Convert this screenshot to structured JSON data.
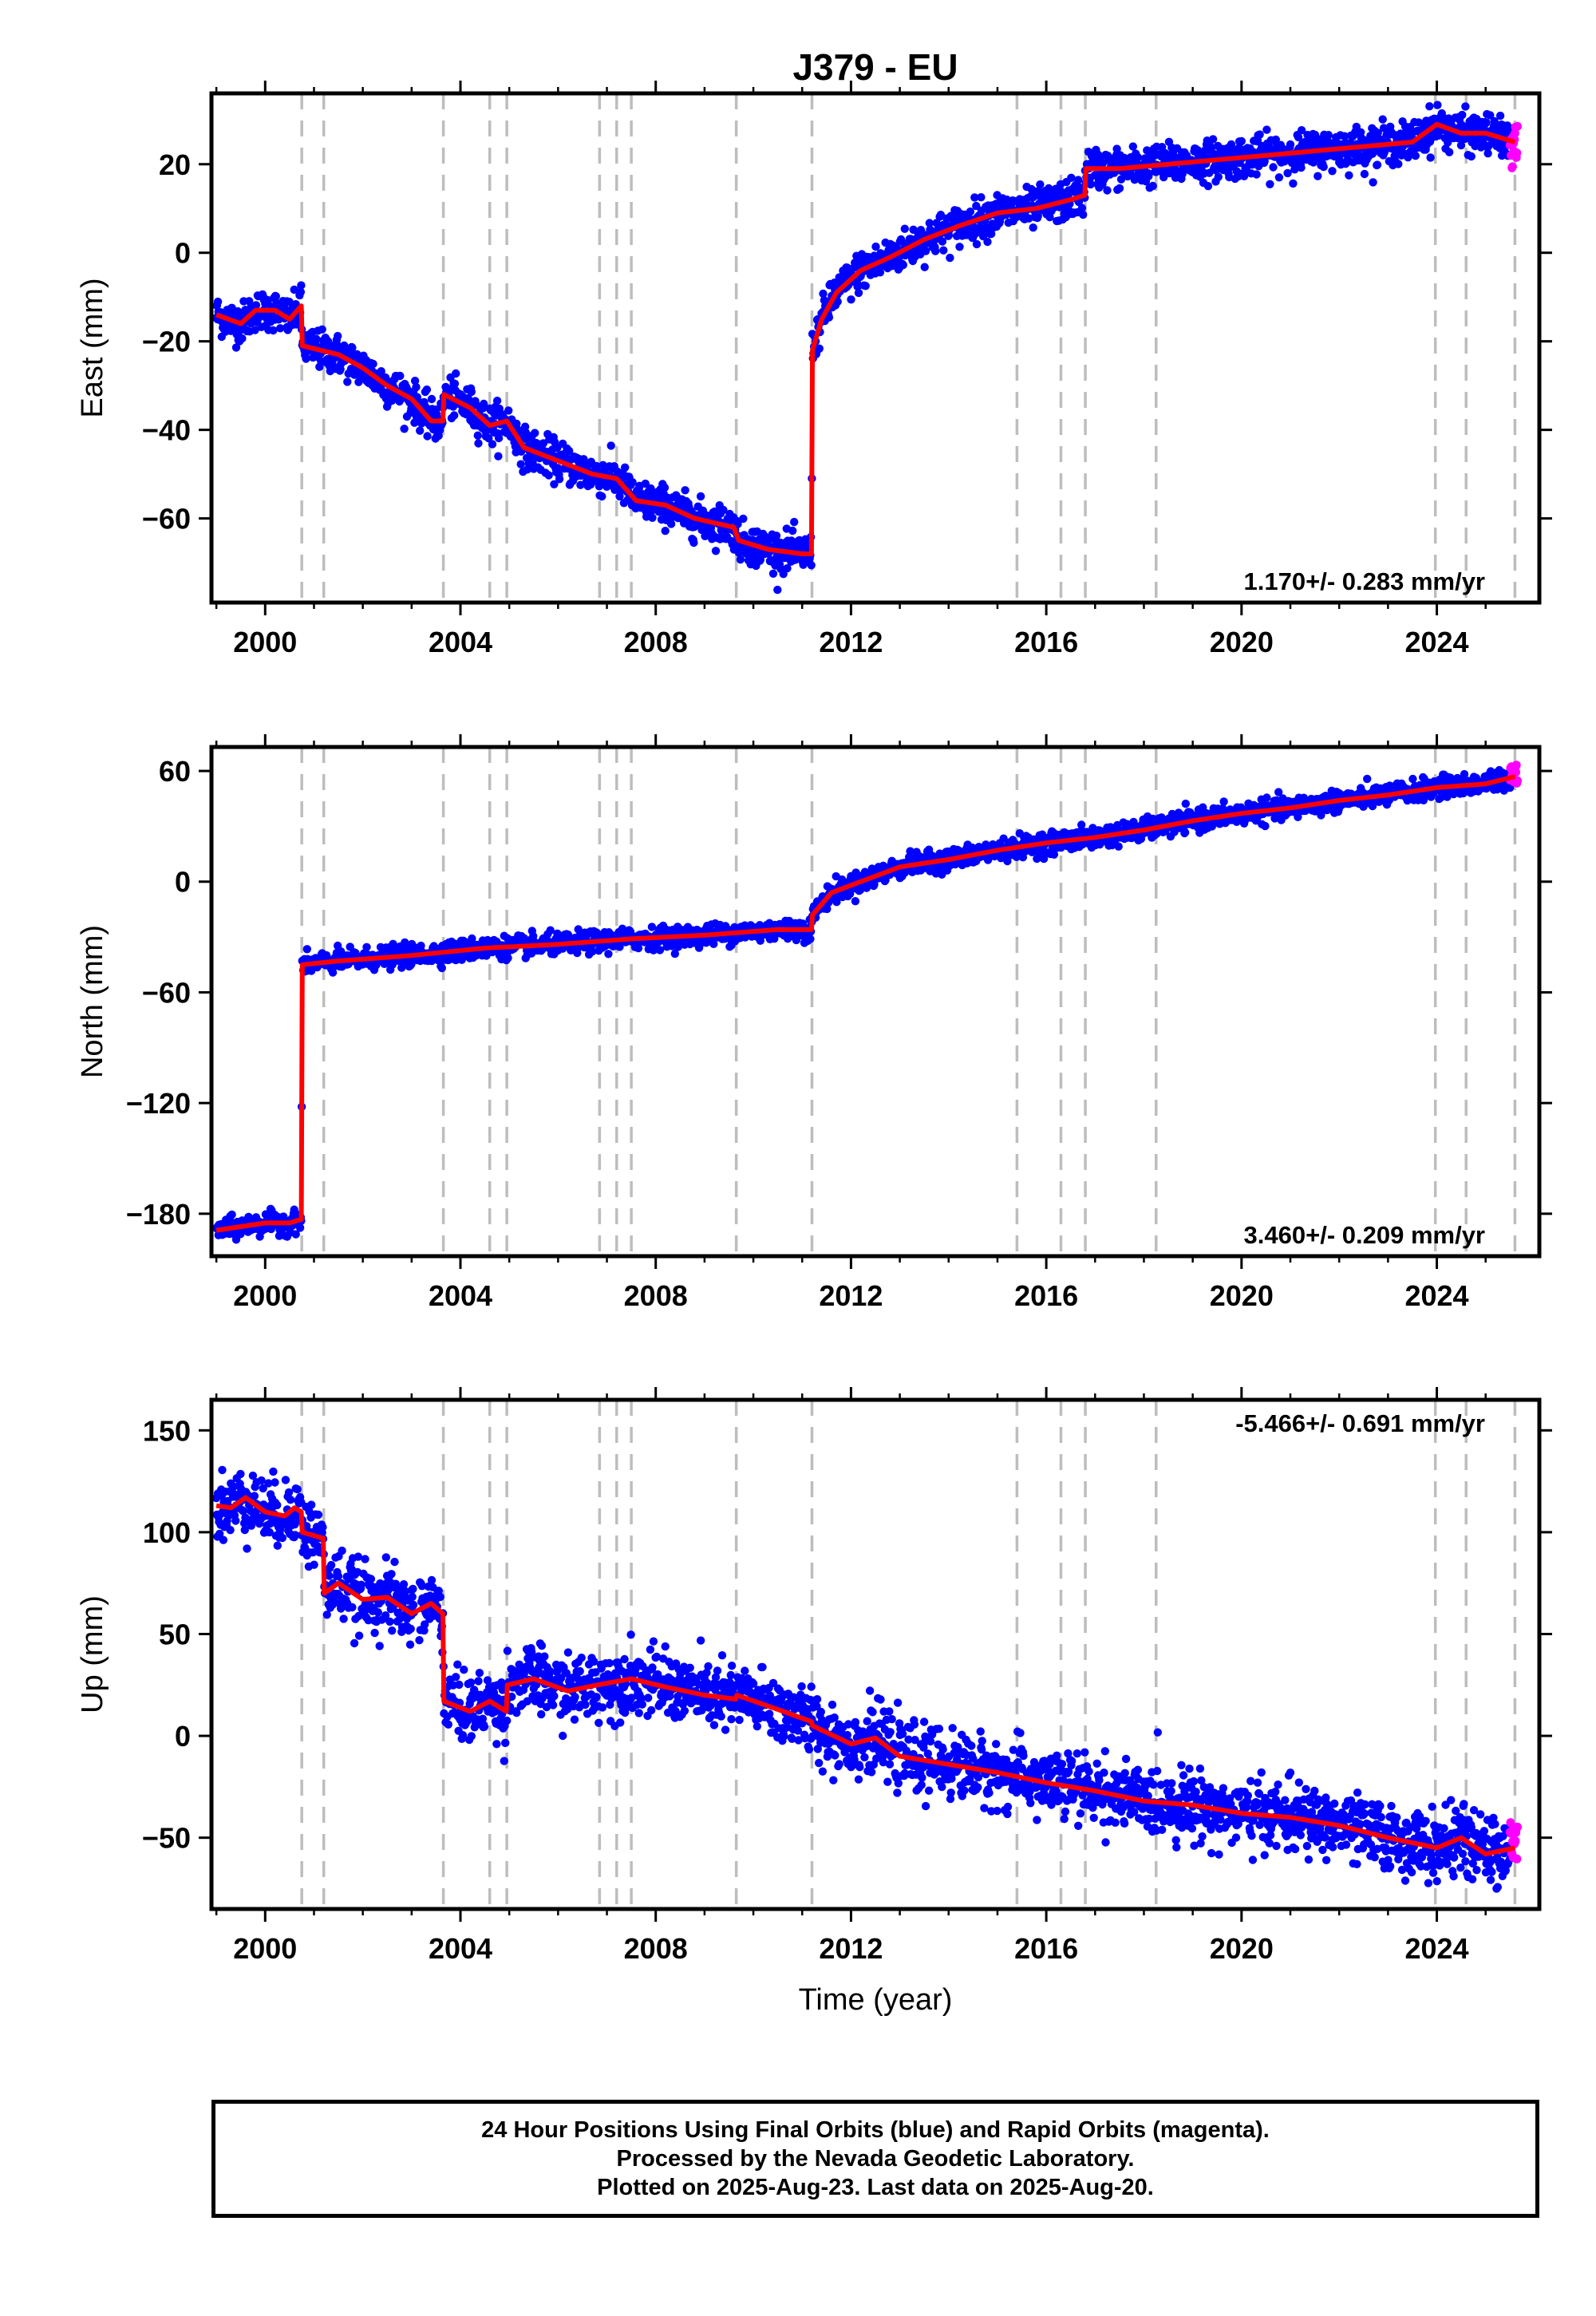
{
  "chart_data": {
    "title": "J379 - EU",
    "type": "scatter",
    "xlabel": "Time (year)",
    "xlim": [
      1998.9,
      2026.1
    ],
    "x_ticks": [
      2000,
      2004,
      2008,
      2012,
      2016,
      2020,
      2024
    ],
    "x_tick_labels": [
      "2000",
      "2004",
      "2008",
      "2012",
      "2016",
      "2020",
      "2024"
    ],
    "grid": false,
    "event_lines": [
      2000.75,
      2001.2,
      2003.65,
      2004.6,
      2004.95,
      2006.85,
      2007.2,
      2007.5,
      2009.65,
      2011.2,
      2015.4,
      2016.3,
      2016.8,
      2018.25,
      2023.97,
      2024.6,
      2025.6
    ],
    "series_legend": {
      "final_orbits": {
        "color": "#0000ff"
      },
      "rapid_orbits": {
        "color": "#ff00ff"
      },
      "model": {
        "color": "#ff0000"
      }
    },
    "panels": [
      {
        "ylabel": "East (mm)",
        "ylim": [
          -79,
          36
        ],
        "y_ticks": [
          -60,
          -40,
          -20,
          0,
          20
        ],
        "y_tick_labels": [
          "−60",
          "−40",
          "−20",
          "0",
          "20"
        ],
        "rate": "1.170+/- 0.283 mm/yr",
        "rate_position": "bottom-right",
        "noise": 2.2,
        "rapid_x": [
          2025.5,
          2025.65
        ],
        "rapid_range": [
          19,
          29
        ],
        "model": [
          {
            "x": 1999.0,
            "y": -14
          },
          {
            "x": 1999.5,
            "y": -16
          },
          {
            "x": 1999.8,
            "y": -13
          },
          {
            "x": 2000.2,
            "y": -13
          },
          {
            "x": 2000.5,
            "y": -15
          },
          {
            "x": 2000.74,
            "y": -12
          },
          {
            "x": 2000.76,
            "y": -21
          },
          {
            "x": 2001.5,
            "y": -23
          },
          {
            "x": 2002.0,
            "y": -26
          },
          {
            "x": 2002.5,
            "y": -30
          },
          {
            "x": 2003.0,
            "y": -33
          },
          {
            "x": 2003.4,
            "y": -38
          },
          {
            "x": 2003.64,
            "y": -38
          },
          {
            "x": 2003.66,
            "y": -32
          },
          {
            "x": 2004.2,
            "y": -35
          },
          {
            "x": 2004.6,
            "y": -39
          },
          {
            "x": 2004.95,
            "y": -38
          },
          {
            "x": 2005.3,
            "y": -44
          },
          {
            "x": 2006.0,
            "y": -47
          },
          {
            "x": 2006.7,
            "y": -50
          },
          {
            "x": 2007.2,
            "y": -51
          },
          {
            "x": 2007.6,
            "y": -56
          },
          {
            "x": 2008.2,
            "y": -57
          },
          {
            "x": 2008.8,
            "y": -60
          },
          {
            "x": 2009.6,
            "y": -62
          },
          {
            "x": 2009.7,
            "y": -65
          },
          {
            "x": 2010.3,
            "y": -67
          },
          {
            "x": 2011.0,
            "y": -68
          },
          {
            "x": 2011.19,
            "y": -68
          },
          {
            "x": 2011.21,
            "y": -22
          },
          {
            "x": 2011.4,
            "y": -15
          },
          {
            "x": 2011.7,
            "y": -9
          },
          {
            "x": 2012.2,
            "y": -4
          },
          {
            "x": 2012.8,
            "y": -1
          },
          {
            "x": 2013.5,
            "y": 3
          },
          {
            "x": 2014.2,
            "y": 6
          },
          {
            "x": 2015.0,
            "y": 9
          },
          {
            "x": 2015.8,
            "y": 10
          },
          {
            "x": 2016.5,
            "y": 12
          },
          {
            "x": 2016.79,
            "y": 13
          },
          {
            "x": 2016.81,
            "y": 19
          },
          {
            "x": 2017.5,
            "y": 19
          },
          {
            "x": 2018.5,
            "y": 20
          },
          {
            "x": 2019.5,
            "y": 21
          },
          {
            "x": 2020.5,
            "y": 22
          },
          {
            "x": 2021.5,
            "y": 23
          },
          {
            "x": 2022.5,
            "y": 24
          },
          {
            "x": 2023.5,
            "y": 25
          },
          {
            "x": 2024.0,
            "y": 29
          },
          {
            "x": 2024.5,
            "y": 27
          },
          {
            "x": 2025.0,
            "y": 27
          },
          {
            "x": 2025.6,
            "y": 25
          }
        ]
      },
      {
        "ylabel": "North (mm)",
        "ylim": [
          -203,
          73
        ],
        "y_ticks": [
          -180,
          -120,
          -60,
          0,
          60
        ],
        "y_tick_labels": [
          "−180",
          "−120",
          "−60",
          "0",
          "60"
        ],
        "rate": "3.460+/- 0.209 mm/yr",
        "rate_position": "bottom-right",
        "noise": 2.8,
        "rapid_x": [
          2025.5,
          2025.65
        ],
        "rapid_range": [
          52,
          64
        ],
        "model": [
          {
            "x": 1999.0,
            "y": -189
          },
          {
            "x": 1999.5,
            "y": -187
          },
          {
            "x": 2000.0,
            "y": -185
          },
          {
            "x": 2000.5,
            "y": -185
          },
          {
            "x": 2000.74,
            "y": -183
          },
          {
            "x": 2000.76,
            "y": -45
          },
          {
            "x": 2001.5,
            "y": -43
          },
          {
            "x": 2003.0,
            "y": -40
          },
          {
            "x": 2004.5,
            "y": -36
          },
          {
            "x": 2006.0,
            "y": -34
          },
          {
            "x": 2007.5,
            "y": -31
          },
          {
            "x": 2009.0,
            "y": -29
          },
          {
            "x": 2010.5,
            "y": -26
          },
          {
            "x": 2011.19,
            "y": -26
          },
          {
            "x": 2011.21,
            "y": -18
          },
          {
            "x": 2011.6,
            "y": -6
          },
          {
            "x": 2012.2,
            "y": 0
          },
          {
            "x": 2013.0,
            "y": 8
          },
          {
            "x": 2014.0,
            "y": 12
          },
          {
            "x": 2015.0,
            "y": 17
          },
          {
            "x": 2016.0,
            "y": 21
          },
          {
            "x": 2017.0,
            "y": 24
          },
          {
            "x": 2018.0,
            "y": 28
          },
          {
            "x": 2019.0,
            "y": 33
          },
          {
            "x": 2020.0,
            "y": 37
          },
          {
            "x": 2021.0,
            "y": 40
          },
          {
            "x": 2022.0,
            "y": 44
          },
          {
            "x": 2023.0,
            "y": 47
          },
          {
            "x": 2024.0,
            "y": 51
          },
          {
            "x": 2025.0,
            "y": 53
          },
          {
            "x": 2025.6,
            "y": 57
          }
        ]
      },
      {
        "ylabel": "Up (mm)",
        "ylim": [
          -85,
          165
        ],
        "y_ticks": [
          -50,
          0,
          50,
          100,
          150
        ],
        "y_tick_labels": [
          "−50",
          "0",
          "50",
          "100",
          "150"
        ],
        "rate": "-5.466+/- 0.691 mm/yr",
        "rate_position": "top-right",
        "noise": 8,
        "gap": [
          2003.05,
          2003.15
        ],
        "rapid_x": [
          2025.5,
          2025.65
        ],
        "rapid_range": [
          -62,
          -42
        ],
        "model": [
          {
            "x": 1999.0,
            "y": 113
          },
          {
            "x": 1999.3,
            "y": 112
          },
          {
            "x": 1999.6,
            "y": 117
          },
          {
            "x": 2000.0,
            "y": 110
          },
          {
            "x": 2000.4,
            "y": 108
          },
          {
            "x": 2000.6,
            "y": 112
          },
          {
            "x": 2000.74,
            "y": 110
          },
          {
            "x": 2000.76,
            "y": 100
          },
          {
            "x": 2001.19,
            "y": 97
          },
          {
            "x": 2001.21,
            "y": 70
          },
          {
            "x": 2001.5,
            "y": 75
          },
          {
            "x": 2002.0,
            "y": 67
          },
          {
            "x": 2002.5,
            "y": 68
          },
          {
            "x": 2003.0,
            "y": 60
          },
          {
            "x": 2003.4,
            "y": 65
          },
          {
            "x": 2003.64,
            "y": 60
          },
          {
            "x": 2003.66,
            "y": 17
          },
          {
            "x": 2004.2,
            "y": 12
          },
          {
            "x": 2004.6,
            "y": 17
          },
          {
            "x": 2004.94,
            "y": 12
          },
          {
            "x": 2004.96,
            "y": 25
          },
          {
            "x": 2005.5,
            "y": 28
          },
          {
            "x": 2006.2,
            "y": 22
          },
          {
            "x": 2006.8,
            "y": 25
          },
          {
            "x": 2007.5,
            "y": 28
          },
          {
            "x": 2008.2,
            "y": 24
          },
          {
            "x": 2009.0,
            "y": 20
          },
          {
            "x": 2009.64,
            "y": 18
          },
          {
            "x": 2009.66,
            "y": 20
          },
          {
            "x": 2010.5,
            "y": 13
          },
          {
            "x": 2011.19,
            "y": 7
          },
          {
            "x": 2011.21,
            "y": 5
          },
          {
            "x": 2012.0,
            "y": -4
          },
          {
            "x": 2012.5,
            "y": -1
          },
          {
            "x": 2013.0,
            "y": -10
          },
          {
            "x": 2014.0,
            "y": -14
          },
          {
            "x": 2015.0,
            "y": -18
          },
          {
            "x": 2016.0,
            "y": -23
          },
          {
            "x": 2017.0,
            "y": -27
          },
          {
            "x": 2018.0,
            "y": -32
          },
          {
            "x": 2019.0,
            "y": -34
          },
          {
            "x": 2020.0,
            "y": -38
          },
          {
            "x": 2021.0,
            "y": -40
          },
          {
            "x": 2022.0,
            "y": -44
          },
          {
            "x": 2023.0,
            "y": -50
          },
          {
            "x": 2024.0,
            "y": -55
          },
          {
            "x": 2024.5,
            "y": -50
          },
          {
            "x": 2025.0,
            "y": -58
          },
          {
            "x": 2025.6,
            "y": -55
          }
        ]
      }
    ]
  },
  "footer": {
    "line1": "24 Hour Positions Using Final Orbits (blue) and Rapid Orbits (magenta).",
    "line2": "Processed by the Nevada Geodetic Laboratory.",
    "line3": "Plotted on 2025-Aug-23. Last data on 2025-Aug-20."
  }
}
